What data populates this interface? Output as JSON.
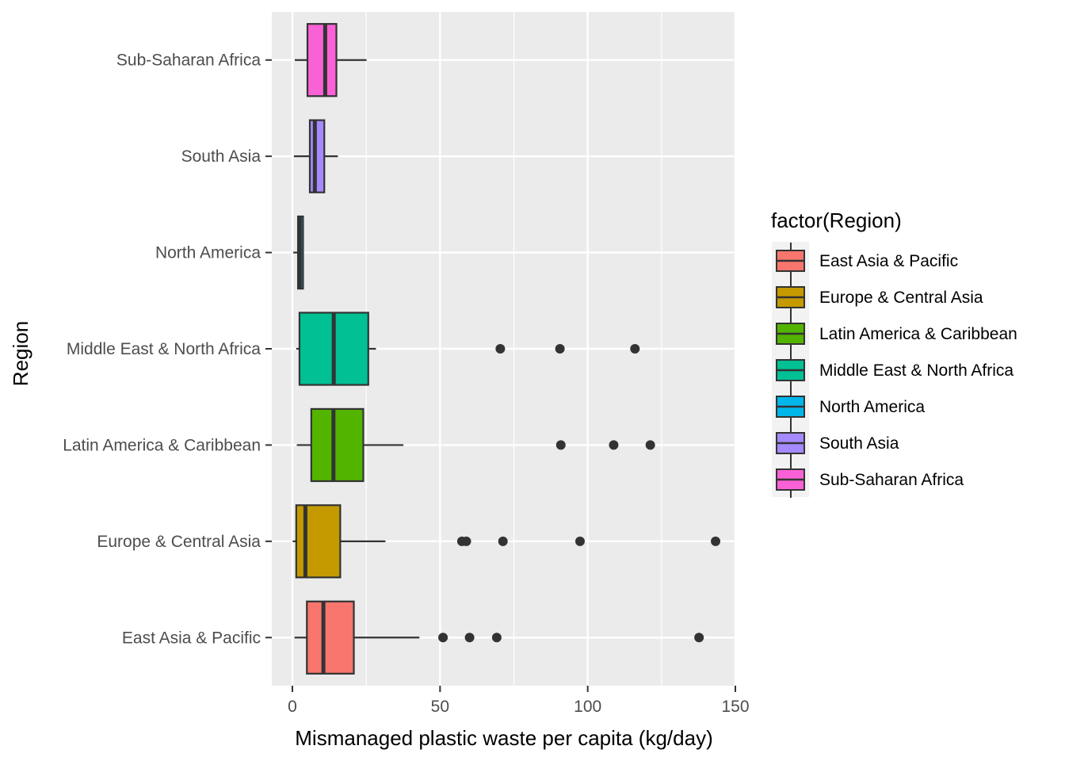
{
  "chart_data": {
    "type": "boxplot",
    "orientation": "horizontal",
    "title": "",
    "xlabel": "Mismanaged plastic waste per capita (kg/day)",
    "ylabel": "Region",
    "xlim": [
      -7,
      150
    ],
    "x_ticks": [
      0,
      50,
      100,
      150
    ],
    "grid": true,
    "legend": {
      "title": "factor(Region)",
      "placement": "right"
    },
    "categories": [
      "East Asia & Pacific",
      "Europe & Central Asia",
      "Latin America & Caribbean",
      "Middle East & North Africa",
      "North America",
      "South Asia",
      "Sub-Saharan Africa"
    ],
    "series": [
      {
        "name": "East Asia & Pacific",
        "color": "#F8766D",
        "whisker_low": 0.7,
        "q1": 4.9,
        "median": 10.5,
        "q3": 20.8,
        "whisker_high": 43.0,
        "outliers": [
          51.0,
          60.0,
          69.2,
          137.7
        ]
      },
      {
        "name": "Europe & Central Asia",
        "color": "#C49A00",
        "whisker_low": 0.1,
        "q1": 1.3,
        "median": 4.4,
        "q3": 16.2,
        "whisker_high": 31.5,
        "outliers": [
          57.4,
          58.9,
          71.3,
          97.4,
          143.3
        ]
      },
      {
        "name": "Latin America & Caribbean",
        "color": "#53B400",
        "whisker_low": 1.5,
        "q1": 6.4,
        "median": 13.9,
        "q3": 24.0,
        "whisker_high": 37.6,
        "outliers": [
          90.9,
          108.8,
          121.2
        ]
      },
      {
        "name": "Middle East & North Africa",
        "color": "#00C094",
        "whisker_low": 1.3,
        "q1": 2.4,
        "median": 14.0,
        "q3": 25.7,
        "whisker_high": 28.3,
        "outliers": [
          70.4,
          90.6,
          116.0
        ]
      },
      {
        "name": "North America",
        "color": "#00B6EB",
        "whisker_low": 0.3,
        "q1": 1.9,
        "median": 2.5,
        "q3": 3.6,
        "whisker_high": 3.8,
        "outliers": []
      },
      {
        "name": "South Asia",
        "color": "#A58AFF",
        "whisker_low": 0.5,
        "q1": 5.9,
        "median": 7.6,
        "q3": 10.8,
        "whisker_high": 15.4,
        "outliers": []
      },
      {
        "name": "Sub-Saharan Africa",
        "color": "#FB61D7",
        "whisker_low": 0.8,
        "q1": 5.1,
        "median": 11.1,
        "q3": 14.9,
        "whisker_high": 25.1,
        "outliers": []
      }
    ]
  }
}
